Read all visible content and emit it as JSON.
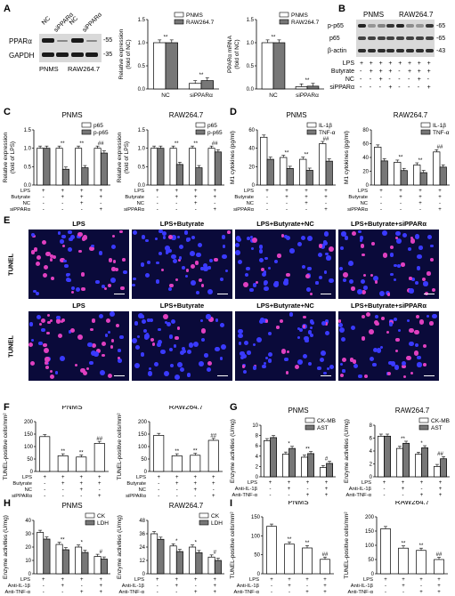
{
  "panels": {
    "A": "A",
    "B": "B",
    "C": "C",
    "D": "D",
    "E": "E",
    "F": "F",
    "G": "G",
    "H": "H",
    "I": "I"
  },
  "blotA": {
    "lanes": [
      "NC",
      "siPPARα",
      "NC",
      "siPPARα"
    ],
    "rows": [
      "PPARα",
      "GAPDH"
    ],
    "markers": [
      "-55",
      "-35"
    ],
    "groups": [
      "PNMS",
      "RAW264.7"
    ]
  },
  "blotB": {
    "groups": [
      "PNMS",
      "RAW264.7"
    ],
    "rows": [
      "p-p65",
      "p65",
      "β-actin"
    ],
    "markers": [
      "-65",
      "-65",
      "-43"
    ],
    "conditions": [
      {
        "name": "LPS",
        "signs": [
          "+",
          "+",
          "+",
          "+",
          "+",
          "+",
          "+",
          "+"
        ]
      },
      {
        "name": "Butyrate",
        "signs": [
          "-",
          "+",
          "+",
          "+",
          "-",
          "+",
          "+",
          "+"
        ]
      },
      {
        "name": "NC",
        "signs": [
          "-",
          "-",
          "+",
          "-",
          "-",
          "-",
          "+",
          "-"
        ]
      },
      {
        "name": "siPPARα",
        "signs": [
          "-",
          "-",
          "-",
          "+",
          "-",
          "-",
          "-",
          "+"
        ]
      }
    ]
  },
  "tunel": {
    "side_label": "TUNEL",
    "titles": [
      "LPS",
      "LPS+Butyrate",
      "LPS+Butyrate+NC",
      "LPS+Butyrate+siPPARα"
    ]
  },
  "chart_data": [
    {
      "id": "A1",
      "type": "bar",
      "title": "",
      "ylabel": "Relative expression\n(fold of NC)",
      "categories": [
        "NC",
        "siPPARα"
      ],
      "ylim": [
        0,
        1.5
      ],
      "yticks": [
        "0.0",
        "0.5",
        "1.0",
        "1.5"
      ],
      "series": [
        {
          "name": "PNMS",
          "values": [
            1.0,
            0.12
          ]
        },
        {
          "name": "RAW264.7",
          "values": [
            1.0,
            0.18
          ]
        }
      ],
      "annotations": [
        "**",
        "**"
      ]
    },
    {
      "id": "A2",
      "type": "bar",
      "title": "",
      "ylabel": "PPARα mRNA\n(fold of NC)",
      "categories": [
        "NC",
        "siPPARα"
      ],
      "ylim": [
        0,
        1.5
      ],
      "yticks": [
        "0.0",
        "0.5",
        "1.0",
        "1.5"
      ],
      "series": [
        {
          "name": "PNMS",
          "values": [
            1.0,
            0.05
          ]
        },
        {
          "name": "RAW264.7",
          "values": [
            1.0,
            0.06
          ]
        }
      ],
      "annotations": [
        "**",
        "**"
      ]
    },
    {
      "id": "C1",
      "type": "bar",
      "title": "PNMS",
      "ylabel": "Relative expression\n(fold of LPS)",
      "ylim": [
        0,
        1.5
      ],
      "yticks": [
        "0.0",
        "0.5",
        "1.0",
        "1.5"
      ],
      "series": [
        {
          "name": "p65",
          "values": [
            1.0,
            1.0,
            1.0,
            1.0
          ]
        },
        {
          "name": "p-p65",
          "values": [
            1.0,
            0.43,
            0.47,
            0.87
          ]
        }
      ],
      "annotations": [
        "",
        "**",
        "**",
        "##"
      ]
    },
    {
      "id": "C2",
      "type": "bar",
      "title": "RAW264.7",
      "ylabel": "Relative expression\n(fold of LPS)",
      "ylim": [
        0,
        1.5
      ],
      "yticks": [
        "0.0",
        "0.5",
        "1.0",
        "1.5"
      ],
      "series": [
        {
          "name": "p65",
          "values": [
            1.0,
            1.0,
            1.0,
            1.0
          ]
        },
        {
          "name": "p-p65",
          "values": [
            1.0,
            0.56,
            0.47,
            0.9
          ]
        }
      ],
      "annotations": [
        "",
        "**",
        "**",
        "##"
      ]
    },
    {
      "id": "D1",
      "type": "bar",
      "title": "PNMS",
      "ylabel": "M1 cytokines (pg/ml)",
      "ylim": [
        0,
        60
      ],
      "yticks": [
        "0",
        "20",
        "40",
        "60"
      ],
      "series": [
        {
          "name": "IL-1β",
          "values": [
            52,
            30,
            28,
            45
          ]
        },
        {
          "name": "TNF-α",
          "values": [
            28,
            18,
            16,
            26
          ]
        }
      ],
      "annotations": [
        "",
        "**",
        "**",
        "##"
      ]
    },
    {
      "id": "D2",
      "type": "bar",
      "title": "RAW264.7",
      "ylabel": "M1 cytokines (pg/ml)",
      "ylim": [
        0,
        80
      ],
      "yticks": [
        "0",
        "20",
        "40",
        "60",
        "80"
      ],
      "series": [
        {
          "name": "IL-1β",
          "values": [
            55,
            33,
            29,
            48
          ]
        },
        {
          "name": "TNF-α",
          "values": [
            35,
            21,
            18,
            26
          ]
        }
      ],
      "annotations": [
        "",
        "**",
        "**",
        "##"
      ]
    },
    {
      "id": "F1",
      "type": "bar",
      "title": "PNMS",
      "ylabel": "TUNEL-positive cells/mm²",
      "ylim": [
        0,
        200
      ],
      "yticks": [
        "0",
        "50",
        "100",
        "150",
        "200"
      ],
      "series": [
        {
          "name": "",
          "values": [
            140,
            63,
            58,
            113
          ]
        }
      ],
      "annotations": [
        "",
        "**",
        "**",
        "##"
      ]
    },
    {
      "id": "F2",
      "type": "bar",
      "title": "RAW264.7",
      "ylabel": "TUNEL-positive cells/mm²",
      "ylim": [
        0,
        200
      ],
      "yticks": [
        "0",
        "50",
        "100",
        "150",
        "200"
      ],
      "series": [
        {
          "name": "",
          "values": [
            145,
            63,
            65,
            125
          ]
        }
      ],
      "annotations": [
        "",
        "**",
        "**",
        "##"
      ]
    },
    {
      "id": "G1",
      "type": "bar",
      "title": "PNMS",
      "ylabel": "Enzyme activities (U/mg)",
      "ylim": [
        0,
        10
      ],
      "yticks": [
        "0",
        "2",
        "4",
        "6",
        "8",
        "10"
      ],
      "series": [
        {
          "name": "CK-MB",
          "values": [
            7.0,
            4.4,
            3.8,
            1.8
          ]
        },
        {
          "name": "AST",
          "values": [
            7.6,
            5.5,
            4.5,
            2.6
          ]
        }
      ],
      "annotations": [
        "",
        "*",
        "**",
        "#"
      ]
    },
    {
      "id": "G2",
      "type": "bar",
      "title": "RAW264.7",
      "ylabel": "Enzyme activities (U/mg)",
      "ylim": [
        0,
        8
      ],
      "yticks": [
        "0",
        "2",
        "4",
        "6",
        "8"
      ],
      "series": [
        {
          "name": "CK-MB",
          "values": [
            6.3,
            4.4,
            3.5,
            1.6
          ]
        },
        {
          "name": "AST",
          "values": [
            6.3,
            5.2,
            4.5,
            2.8
          ]
        }
      ],
      "annotations": [
        "",
        "**",
        "*",
        "##"
      ]
    },
    {
      "id": "H1",
      "type": "bar",
      "title": "PNMS",
      "ylabel": "Enzyme activities (U/mg)",
      "ylim": [
        0,
        40
      ],
      "yticks": [
        "0",
        "10",
        "20",
        "30",
        "40"
      ],
      "series": [
        {
          "name": "CK",
          "values": [
            31,
            22,
            20,
            13
          ]
        },
        {
          "name": "LDH",
          "values": [
            26,
            18,
            16,
            11
          ]
        }
      ],
      "annotations": [
        "",
        "**",
        "*",
        "#"
      ]
    },
    {
      "id": "H2",
      "type": "bar",
      "title": "RAW264.7",
      "ylabel": "Enzyme activities (U/mg)",
      "ylim": [
        0,
        48
      ],
      "yticks": [
        "0",
        "12",
        "24",
        "36",
        "48"
      ],
      "series": [
        {
          "name": "CK",
          "values": [
            36,
            25,
            24,
            15
          ]
        },
        {
          "name": "LDH",
          "values": [
            31,
            20,
            19,
            12
          ]
        }
      ],
      "annotations": [
        "",
        "*",
        "*",
        "#"
      ]
    },
    {
      "id": "I1",
      "type": "bar",
      "title": "PNMS",
      "ylabel": "TUNEL-positive cells/mm²",
      "ylim": [
        0,
        150
      ],
      "yticks": [
        "0",
        "50",
        "100",
        "150"
      ],
      "series": [
        {
          "name": "",
          "values": [
            125,
            78,
            68,
            38
          ]
        }
      ],
      "annotations": [
        "",
        "**",
        "**",
        "##"
      ]
    },
    {
      "id": "I2",
      "type": "bar",
      "title": "RAW264.7",
      "ylabel": "TUNEL-positive cells/mm²",
      "ylim": [
        0,
        200
      ],
      "yticks": [
        "0",
        "50",
        "100",
        "150",
        "200"
      ],
      "series": [
        {
          "name": "",
          "values": [
            158,
            90,
            82,
            50
          ]
        }
      ],
      "annotations": [
        "",
        "**",
        "**",
        "##"
      ]
    }
  ],
  "cond_table_4": [
    {
      "name": "LPS",
      "signs": [
        "+",
        "+",
        "+",
        "+"
      ]
    },
    {
      "name": "Butyrate",
      "signs": [
        "-",
        "+",
        "+",
        "+"
      ]
    },
    {
      "name": "NC",
      "signs": [
        "-",
        "-",
        "+",
        "-"
      ]
    },
    {
      "name": "siPPARα",
      "signs": [
        "-",
        "-",
        "-",
        "+"
      ]
    }
  ],
  "cond_table_anti": [
    {
      "name": "LPS",
      "signs": [
        "+",
        "+",
        "+",
        "+"
      ]
    },
    {
      "name": "Anti-IL-1β",
      "signs": [
        "-",
        "+",
        "-",
        "+"
      ]
    },
    {
      "name": "Anti-TNF-α",
      "signs": [
        "-",
        "-",
        "+",
        "+"
      ]
    }
  ]
}
